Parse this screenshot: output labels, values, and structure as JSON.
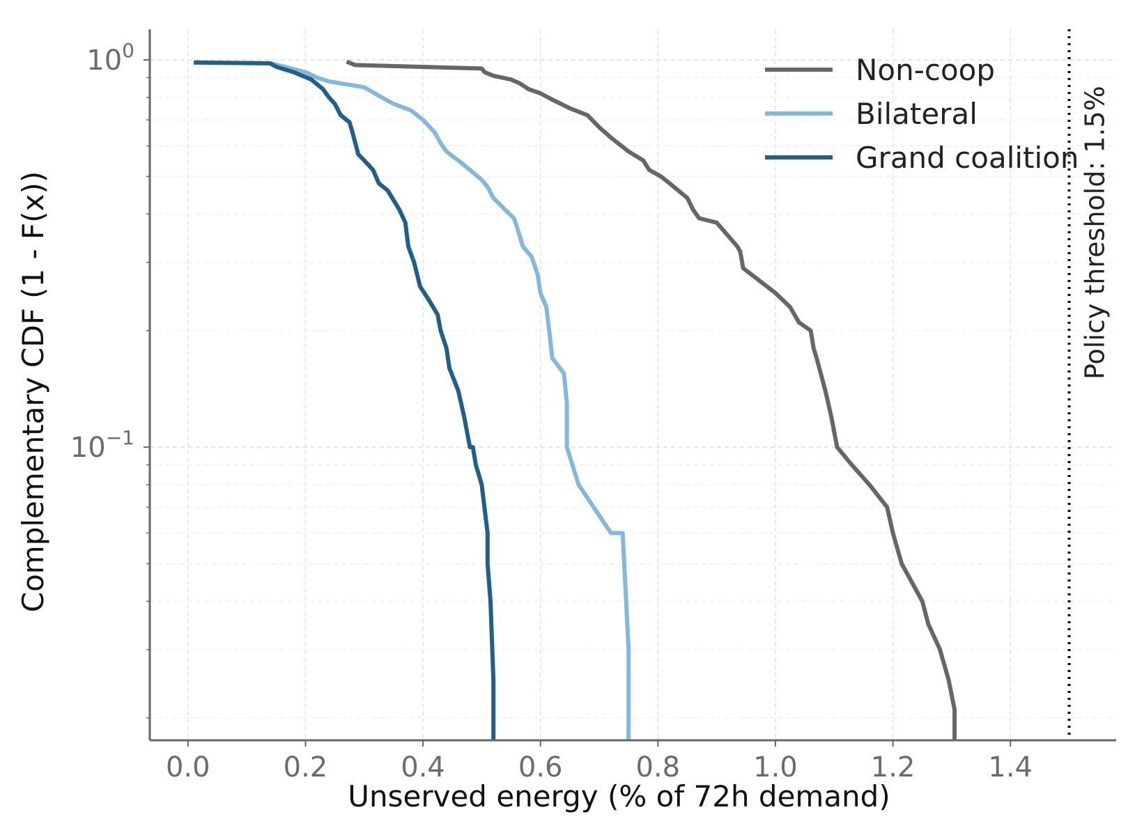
{
  "chart_data": {
    "type": "line",
    "xlabel": "Unserved energy (% of 72h demand)",
    "ylabel": "Complementary CDF (1 - F(x))",
    "xscale": "linear",
    "yscale": "log",
    "xlim": [
      -0.065,
      1.58
    ],
    "ylim": [
      0.0175,
      1.2
    ],
    "xticks": [
      0.0,
      0.2,
      0.4,
      0.6,
      0.8,
      1.0,
      1.2,
      1.4
    ],
    "xtick_labels": [
      "0.0",
      "0.2",
      "0.4",
      "0.6",
      "0.8",
      "1.0",
      "1.2",
      "1.4"
    ],
    "yticks": [
      0.1,
      1.0
    ],
    "ytick_labels": [
      {
        "base": "10",
        "exp": "−1"
      },
      {
        "base": "10",
        "exp": "0"
      }
    ],
    "grid": true,
    "legend_position": "top-right",
    "threshold": {
      "x": 1.5,
      "label": "Policy threshold: 1.5%",
      "style": "dotted",
      "color": "#000000"
    },
    "series": [
      {
        "name": "Non-coop",
        "color": "#666666",
        "x": [
          0.27,
          0.285,
          0.5,
          0.505,
          0.52,
          0.55,
          0.565,
          0.58,
          0.6,
          0.62,
          0.65,
          0.68,
          0.7,
          0.72,
          0.75,
          0.775,
          0.785,
          0.805,
          0.82,
          0.85,
          0.86,
          0.87,
          0.9,
          0.935,
          0.94,
          0.945,
          1.0,
          1.025,
          1.04,
          1.06,
          1.065,
          1.07,
          1.085,
          1.095,
          1.105,
          1.13,
          1.16,
          1.19,
          1.2,
          1.215,
          1.25,
          1.26,
          1.28,
          1.295,
          1.305,
          1.305
        ],
        "y": [
          0.99,
          0.97,
          0.95,
          0.93,
          0.91,
          0.89,
          0.87,
          0.84,
          0.82,
          0.79,
          0.75,
          0.72,
          0.67,
          0.63,
          0.58,
          0.55,
          0.52,
          0.5,
          0.48,
          0.44,
          0.41,
          0.39,
          0.38,
          0.33,
          0.32,
          0.29,
          0.25,
          0.23,
          0.21,
          0.2,
          0.18,
          0.17,
          0.14,
          0.12,
          0.1,
          0.09,
          0.08,
          0.07,
          0.06,
          0.05,
          0.04,
          0.035,
          0.03,
          0.025,
          0.021,
          0.0175
        ]
      },
      {
        "name": "Bilateral",
        "color": "#82b8de",
        "x": [
          0.01,
          0.14,
          0.165,
          0.2,
          0.22,
          0.24,
          0.3,
          0.33,
          0.35,
          0.38,
          0.4,
          0.42,
          0.43,
          0.44,
          0.46,
          0.48,
          0.5,
          0.51,
          0.52,
          0.54,
          0.555,
          0.56,
          0.57,
          0.585,
          0.595,
          0.6,
          0.61,
          0.615,
          0.62,
          0.64,
          0.645,
          0.645,
          0.665,
          0.72,
          0.74,
          0.75,
          0.75
        ],
        "y": [
          0.985,
          0.98,
          0.96,
          0.93,
          0.9,
          0.88,
          0.85,
          0.8,
          0.77,
          0.74,
          0.7,
          0.65,
          0.61,
          0.58,
          0.55,
          0.52,
          0.49,
          0.47,
          0.44,
          0.41,
          0.39,
          0.37,
          0.33,
          0.31,
          0.28,
          0.25,
          0.23,
          0.2,
          0.17,
          0.155,
          0.13,
          0.1,
          0.08,
          0.06,
          0.06,
          0.03,
          0.0175
        ]
      },
      {
        "name": "Grand coalition",
        "color": "#1f5f8c",
        "x": [
          0.01,
          0.14,
          0.15,
          0.18,
          0.21,
          0.23,
          0.24,
          0.25,
          0.26,
          0.275,
          0.28,
          0.29,
          0.3,
          0.315,
          0.325,
          0.34,
          0.36,
          0.37,
          0.375,
          0.385,
          0.395,
          0.41,
          0.425,
          0.43,
          0.44,
          0.445,
          0.46,
          0.47,
          0.48,
          0.485,
          0.49,
          0.5,
          0.51,
          0.51,
          0.515,
          0.52,
          0.52
        ],
        "y": [
          0.985,
          0.98,
          0.96,
          0.93,
          0.89,
          0.84,
          0.8,
          0.77,
          0.72,
          0.69,
          0.65,
          0.57,
          0.55,
          0.52,
          0.48,
          0.46,
          0.41,
          0.38,
          0.33,
          0.3,
          0.26,
          0.24,
          0.22,
          0.2,
          0.18,
          0.16,
          0.14,
          0.12,
          0.1,
          0.1,
          0.09,
          0.08,
          0.06,
          0.05,
          0.04,
          0.025,
          0.0175
        ]
      }
    ]
  }
}
